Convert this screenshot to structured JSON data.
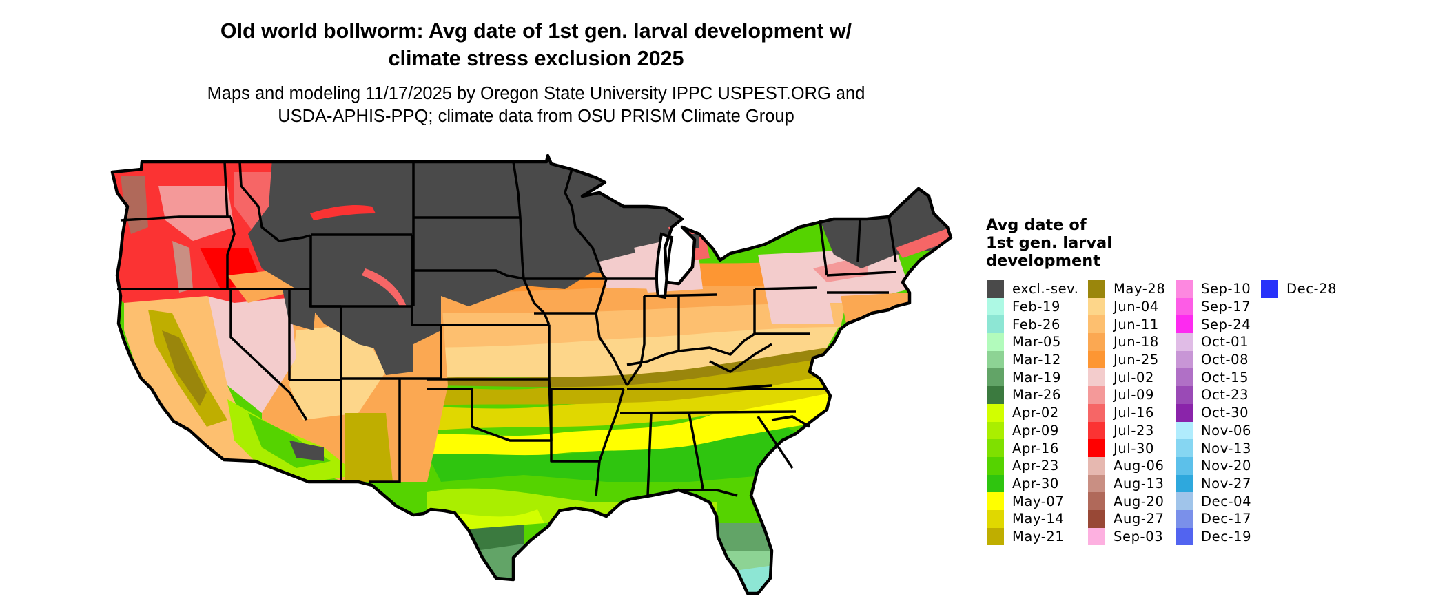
{
  "header": {
    "title_line1": "Old world bollworm: Avg date of 1st gen. larval development w/",
    "title_line2": "climate stress exclusion 2025",
    "subtitle_line1": "Maps and modeling 11/17/2025 by Oregon State University IPPC USPEST.ORG and",
    "subtitle_line2": "USDA-APHIS-PPQ; climate data from OSU PRISM Climate Group"
  },
  "legend": {
    "title_line1": "Avg date of",
    "title_line2": "1st gen. larval",
    "title_line3": "development",
    "columns": [
      [
        {
          "label": "excl.-sev.",
          "color": "#4a4a4a"
        },
        {
          "label": "Feb-19",
          "color": "#adf9e4"
        },
        {
          "label": "Feb-26",
          "color": "#8de6d4"
        },
        {
          "label": "Mar-05",
          "color": "#b2fbbc"
        },
        {
          "label": "Mar-12",
          "color": "#8dd394"
        },
        {
          "label": "Mar-19",
          "color": "#62a467"
        },
        {
          "label": "Mar-26",
          "color": "#3b7a3f"
        },
        {
          "label": "Apr-02",
          "color": "#d2ff00"
        },
        {
          "label": "Apr-09",
          "color": "#aaee00"
        },
        {
          "label": "Apr-16",
          "color": "#7fe000"
        },
        {
          "label": "Apr-23",
          "color": "#55d300"
        },
        {
          "label": "Apr-30",
          "color": "#2fc50f"
        },
        {
          "label": "May-07",
          "color": "#ffff00"
        },
        {
          "label": "May-14",
          "color": "#e0d800"
        },
        {
          "label": "May-21",
          "color": "#bfae00"
        }
      ],
      [
        {
          "label": "May-28",
          "color": "#9a860c"
        },
        {
          "label": "Jun-04",
          "color": "#fdd68a"
        },
        {
          "label": "Jun-11",
          "color": "#fdbf6f"
        },
        {
          "label": "Jun-18",
          "color": "#fba852"
        },
        {
          "label": "Jun-25",
          "color": "#fd9633"
        },
        {
          "label": "Jul-02",
          "color": "#f3cccc"
        },
        {
          "label": "Jul-09",
          "color": "#f49999"
        },
        {
          "label": "Jul-16",
          "color": "#f66666"
        },
        {
          "label": "Jul-23",
          "color": "#fb3333"
        },
        {
          "label": "Jul-30",
          "color": "#ff0000"
        },
        {
          "label": "Aug-06",
          "color": "#e6b8b0"
        },
        {
          "label": "Aug-13",
          "color": "#c98f83"
        },
        {
          "label": "Aug-20",
          "color": "#b0695a"
        },
        {
          "label": "Aug-27",
          "color": "#984836"
        },
        {
          "label": "Sep-03",
          "color": "#fdb0e0"
        }
      ],
      [
        {
          "label": "Sep-10",
          "color": "#fd88e0"
        },
        {
          "label": "Sep-17",
          "color": "#fd5ce6"
        },
        {
          "label": "Sep-24",
          "color": "#fd2af0"
        },
        {
          "label": "Oct-01",
          "color": "#e0bce6"
        },
        {
          "label": "Oct-08",
          "color": "#c896d6"
        },
        {
          "label": "Oct-15",
          "color": "#b070c6"
        },
        {
          "label": "Oct-23",
          "color": "#9a4ab6"
        },
        {
          "label": "Oct-30",
          "color": "#8a24aa"
        },
        {
          "label": "Nov-06",
          "color": "#b0ecfd"
        },
        {
          "label": "Nov-13",
          "color": "#86d6f2"
        },
        {
          "label": "Nov-20",
          "color": "#5cc0ea"
        },
        {
          "label": "Nov-27",
          "color": "#2ea8dd"
        },
        {
          "label": "Dec-04",
          "color": "#a0c4ea"
        },
        {
          "label": "Dec-17",
          "color": "#7a90ea"
        },
        {
          "label": "Dec-19",
          "color": "#5264f0"
        }
      ],
      [
        {
          "label": "Dec-28",
          "color": "#2832fa"
        }
      ]
    ]
  }
}
